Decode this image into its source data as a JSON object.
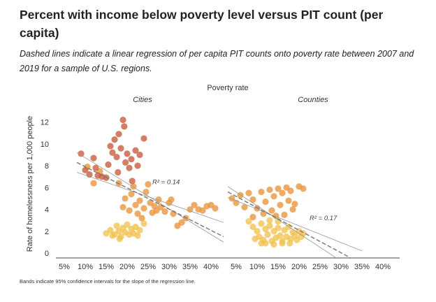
{
  "title": "Percent with income below poverty level versus PIT count (per capita)",
  "subtitle": "Dashed lines indicate a linear regression of per capita PIT counts onto poverty rate between 2007 and 2019 for a sample of U.S. regions.",
  "footnote": "Bands indicate 95% confidence intervals for the slope of the regression line.",
  "chart_data": {
    "type": "scatter",
    "top_label": "Poverty rate",
    "ylabel": "Rate of homelessness per 1,000 people",
    "ylim": [
      0,
      13
    ],
    "yticks": [
      "0",
      "2",
      "4",
      "6",
      "8",
      "10",
      "12"
    ],
    "xlim": [
      3,
      44
    ],
    "xticks": [
      "5%",
      "10%",
      "15%",
      "20%",
      "25%",
      "30%",
      "35%",
      "40%"
    ],
    "colors": {
      "red": "#c85a3a",
      "orange": "#e9933a",
      "yellow": "#f2c24e",
      "line": "#777777",
      "band": "#999999"
    },
    "panels": [
      {
        "name": "Cities",
        "r2": "R² = 0.14",
        "regression": {
          "x": [
            8,
            43
          ],
          "y": [
            8.3,
            1.5
          ]
        },
        "ci_upper": {
          "x": [
            8,
            43
          ],
          "y": [
            9.2,
            1.0
          ]
        },
        "ci_lower": {
          "x": [
            8,
            43
          ],
          "y": [
            7.4,
            2.8
          ]
        },
        "points": [
          {
            "x": 9,
            "y": 9.1,
            "g": "red"
          },
          {
            "x": 10,
            "y": 7.6,
            "g": "red"
          },
          {
            "x": 11,
            "y": 7.2,
            "g": "red"
          },
          {
            "x": 12,
            "y": 8.7,
            "g": "red"
          },
          {
            "x": 12.5,
            "y": 7.8,
            "g": "red"
          },
          {
            "x": 13,
            "y": 7.1,
            "g": "red"
          },
          {
            "x": 14,
            "y": 7.0,
            "g": "red"
          },
          {
            "x": 15,
            "y": 6.9,
            "g": "red"
          },
          {
            "x": 16,
            "y": 9.8,
            "g": "red"
          },
          {
            "x": 16.5,
            "y": 9.2,
            "g": "red"
          },
          {
            "x": 17,
            "y": 10.4,
            "g": "red"
          },
          {
            "x": 17.5,
            "y": 8.8,
            "g": "red"
          },
          {
            "x": 18,
            "y": 10.9,
            "g": "red"
          },
          {
            "x": 18.5,
            "y": 9.6,
            "g": "red"
          },
          {
            "x": 19,
            "y": 12.2,
            "g": "red"
          },
          {
            "x": 19.3,
            "y": 11.6,
            "g": "red"
          },
          {
            "x": 19.6,
            "y": 8.3,
            "g": "red"
          },
          {
            "x": 20,
            "y": 9.1,
            "g": "red"
          },
          {
            "x": 20.5,
            "y": 7.8,
            "g": "red"
          },
          {
            "x": 21,
            "y": 8.6,
            "g": "red"
          },
          {
            "x": 22,
            "y": 9.4,
            "g": "red"
          },
          {
            "x": 22.5,
            "y": 8.0,
            "g": "red"
          },
          {
            "x": 23,
            "y": 9.0,
            "g": "red"
          },
          {
            "x": 24,
            "y": 10.5,
            "g": "red"
          },
          {
            "x": 17.8,
            "y": 7.4,
            "g": "red"
          },
          {
            "x": 21.2,
            "y": 6.6,
            "g": "red"
          },
          {
            "x": 15.5,
            "y": 8.1,
            "g": "red"
          },
          {
            "x": 10.5,
            "y": 7.9,
            "g": "orange"
          },
          {
            "x": 12,
            "y": 6.4,
            "g": "orange"
          },
          {
            "x": 13.5,
            "y": 7.5,
            "g": "orange"
          },
          {
            "x": 18,
            "y": 6.4,
            "g": "orange"
          },
          {
            "x": 19,
            "y": 4.2,
            "g": "orange"
          },
          {
            "x": 19.5,
            "y": 5.0,
            "g": "orange"
          },
          {
            "x": 20.5,
            "y": 3.9,
            "g": "orange"
          },
          {
            "x": 21,
            "y": 5.4,
            "g": "orange"
          },
          {
            "x": 21.5,
            "y": 6.1,
            "g": "orange"
          },
          {
            "x": 22,
            "y": 4.4,
            "g": "orange"
          },
          {
            "x": 22.5,
            "y": 3.6,
            "g": "orange"
          },
          {
            "x": 23,
            "y": 4.8,
            "g": "orange"
          },
          {
            "x": 23.5,
            "y": 3.2,
            "g": "orange"
          },
          {
            "x": 24,
            "y": 4.1,
            "g": "orange"
          },
          {
            "x": 24.5,
            "y": 5.6,
            "g": "orange"
          },
          {
            "x": 25,
            "y": 6.3,
            "g": "orange"
          },
          {
            "x": 25.5,
            "y": 4.6,
            "g": "orange"
          },
          {
            "x": 26,
            "y": 3.7,
            "g": "orange"
          },
          {
            "x": 26.5,
            "y": 4.3,
            "g": "orange"
          },
          {
            "x": 27,
            "y": 3.9,
            "g": "orange"
          },
          {
            "x": 27.5,
            "y": 4.9,
            "g": "orange"
          },
          {
            "x": 28,
            "y": 4.2,
            "g": "orange"
          },
          {
            "x": 29,
            "y": 3.8,
            "g": "orange"
          },
          {
            "x": 30,
            "y": 4.6,
            "g": "orange"
          },
          {
            "x": 31,
            "y": 3.6,
            "g": "orange"
          },
          {
            "x": 32,
            "y": 2.5,
            "g": "orange"
          },
          {
            "x": 33,
            "y": 2.8,
            "g": "orange"
          },
          {
            "x": 34,
            "y": 3.2,
            "g": "orange"
          },
          {
            "x": 35,
            "y": 4.0,
            "g": "orange"
          },
          {
            "x": 36,
            "y": 4.4,
            "g": "orange"
          },
          {
            "x": 37,
            "y": 4.0,
            "g": "orange"
          },
          {
            "x": 38,
            "y": 3.9,
            "g": "orange"
          },
          {
            "x": 39,
            "y": 4.3,
            "g": "orange"
          },
          {
            "x": 40,
            "y": 4.4,
            "g": "orange"
          },
          {
            "x": 41,
            "y": 4.1,
            "g": "orange"
          },
          {
            "x": 30.5,
            "y": 4.9,
            "g": "orange"
          },
          {
            "x": 15,
            "y": 1.8,
            "g": "yellow"
          },
          {
            "x": 16,
            "y": 2.1,
            "g": "yellow"
          },
          {
            "x": 17,
            "y": 1.7,
            "g": "yellow"
          },
          {
            "x": 17.5,
            "y": 2.5,
            "g": "yellow"
          },
          {
            "x": 18,
            "y": 2.0,
            "g": "yellow"
          },
          {
            "x": 18.5,
            "y": 1.5,
            "g": "yellow"
          },
          {
            "x": 19,
            "y": 2.3,
            "g": "yellow"
          },
          {
            "x": 19.5,
            "y": 1.9,
            "g": "yellow"
          },
          {
            "x": 20,
            "y": 2.6,
            "g": "yellow"
          },
          {
            "x": 20.5,
            "y": 1.7,
            "g": "yellow"
          },
          {
            "x": 21,
            "y": 2.2,
            "g": "yellow"
          },
          {
            "x": 21.5,
            "y": 1.8,
            "g": "yellow"
          },
          {
            "x": 22,
            "y": 2.4,
            "g": "yellow"
          },
          {
            "x": 22.5,
            "y": 1.6,
            "g": "yellow"
          },
          {
            "x": 23,
            "y": 2.1,
            "g": "yellow"
          },
          {
            "x": 24,
            "y": 2.7,
            "g": "yellow"
          },
          {
            "x": 16.5,
            "y": 1.6,
            "g": "yellow"
          },
          {
            "x": 18.2,
            "y": 1.3,
            "g": "yellow"
          }
        ]
      },
      {
        "name": "Counties",
        "r2": "R² = 0.17",
        "regression": {
          "x": [
            3,
            35
          ],
          "y": [
            5.6,
            -1.0
          ]
        },
        "ci_upper": {
          "x": [
            3,
            35
          ],
          "y": [
            6.1,
            -2.0
          ]
        },
        "ci_lower": {
          "x": [
            3,
            35
          ],
          "y": [
            5.1,
            0.2
          ]
        },
        "points": [
          {
            "x": 4,
            "y": 5.0,
            "g": "orange"
          },
          {
            "x": 5,
            "y": 4.6,
            "g": "orange"
          },
          {
            "x": 6,
            "y": 5.3,
            "g": "orange"
          },
          {
            "x": 7,
            "y": 4.2,
            "g": "orange"
          },
          {
            "x": 8,
            "y": 5.5,
            "g": "orange"
          },
          {
            "x": 9,
            "y": 4.9,
            "g": "orange"
          },
          {
            "x": 10,
            "y": 4.1,
            "g": "orange"
          },
          {
            "x": 11,
            "y": 5.6,
            "g": "orange"
          },
          {
            "x": 12,
            "y": 4.7,
            "g": "orange"
          },
          {
            "x": 13,
            "y": 5.8,
            "g": "orange"
          },
          {
            "x": 14,
            "y": 5.2,
            "g": "orange"
          },
          {
            "x": 15,
            "y": 5.9,
            "g": "orange"
          },
          {
            "x": 15.5,
            "y": 4.4,
            "g": "orange"
          },
          {
            "x": 16,
            "y": 5.5,
            "g": "orange"
          },
          {
            "x": 17,
            "y": 6.0,
            "g": "orange"
          },
          {
            "x": 17.5,
            "y": 4.8,
            "g": "orange"
          },
          {
            "x": 18,
            "y": 5.7,
            "g": "orange"
          },
          {
            "x": 18.5,
            "y": 4.0,
            "g": "orange"
          },
          {
            "x": 19,
            "y": 4.5,
            "g": "orange"
          },
          {
            "x": 20,
            "y": 6.1,
            "g": "orange"
          },
          {
            "x": 21,
            "y": 5.9,
            "g": "orange"
          },
          {
            "x": 11.5,
            "y": 3.6,
            "g": "orange"
          },
          {
            "x": 13.5,
            "y": 3.9,
            "g": "orange"
          },
          {
            "x": 16.5,
            "y": 3.5,
            "g": "orange"
          },
          {
            "x": 9,
            "y": 3.3,
            "g": "orange"
          },
          {
            "x": 14.5,
            "y": 3.4,
            "g": "orange"
          },
          {
            "x": 8,
            "y": 2.9,
            "g": "yellow"
          },
          {
            "x": 9,
            "y": 2.4,
            "g": "yellow"
          },
          {
            "x": 10,
            "y": 2.0,
            "g": "yellow"
          },
          {
            "x": 10.5,
            "y": 1.5,
            "g": "yellow"
          },
          {
            "x": 11,
            "y": 2.7,
            "g": "yellow"
          },
          {
            "x": 11.5,
            "y": 1.2,
            "g": "yellow"
          },
          {
            "x": 12,
            "y": 2.2,
            "g": "yellow"
          },
          {
            "x": 12.5,
            "y": 1.7,
            "g": "yellow"
          },
          {
            "x": 13,
            "y": 2.5,
            "g": "yellow"
          },
          {
            "x": 13.5,
            "y": 1.1,
            "g": "yellow"
          },
          {
            "x": 14,
            "y": 2.0,
            "g": "yellow"
          },
          {
            "x": 14.5,
            "y": 1.4,
            "g": "yellow"
          },
          {
            "x": 15,
            "y": 2.3,
            "g": "yellow"
          },
          {
            "x": 15.5,
            "y": 1.6,
            "g": "yellow"
          },
          {
            "x": 16,
            "y": 1.1,
            "g": "yellow"
          },
          {
            "x": 16.5,
            "y": 2.1,
            "g": "yellow"
          },
          {
            "x": 17,
            "y": 1.5,
            "g": "yellow"
          },
          {
            "x": 17.5,
            "y": 2.4,
            "g": "yellow"
          },
          {
            "x": 18,
            "y": 1.3,
            "g": "yellow"
          },
          {
            "x": 18.5,
            "y": 1.9,
            "g": "yellow"
          },
          {
            "x": 19,
            "y": 1.6,
            "g": "yellow"
          },
          {
            "x": 19.5,
            "y": 1.2,
            "g": "yellow"
          },
          {
            "x": 20,
            "y": 2.0,
            "g": "yellow"
          },
          {
            "x": 20.5,
            "y": 1.5,
            "g": "yellow"
          },
          {
            "x": 21,
            "y": 1.8,
            "g": "yellow"
          },
          {
            "x": 12,
            "y": 0.9,
            "g": "yellow"
          },
          {
            "x": 14,
            "y": 0.8,
            "g": "yellow"
          },
          {
            "x": 16,
            "y": 0.9,
            "g": "yellow"
          },
          {
            "x": 9.5,
            "y": 1.3,
            "g": "yellow"
          },
          {
            "x": 13,
            "y": 3.0,
            "g": "yellow"
          },
          {
            "x": 15,
            "y": 2.9,
            "g": "yellow"
          },
          {
            "x": 11,
            "y": 0.9,
            "g": "yellow"
          },
          {
            "x": 17.8,
            "y": 0.9,
            "g": "yellow"
          }
        ]
      }
    ]
  }
}
